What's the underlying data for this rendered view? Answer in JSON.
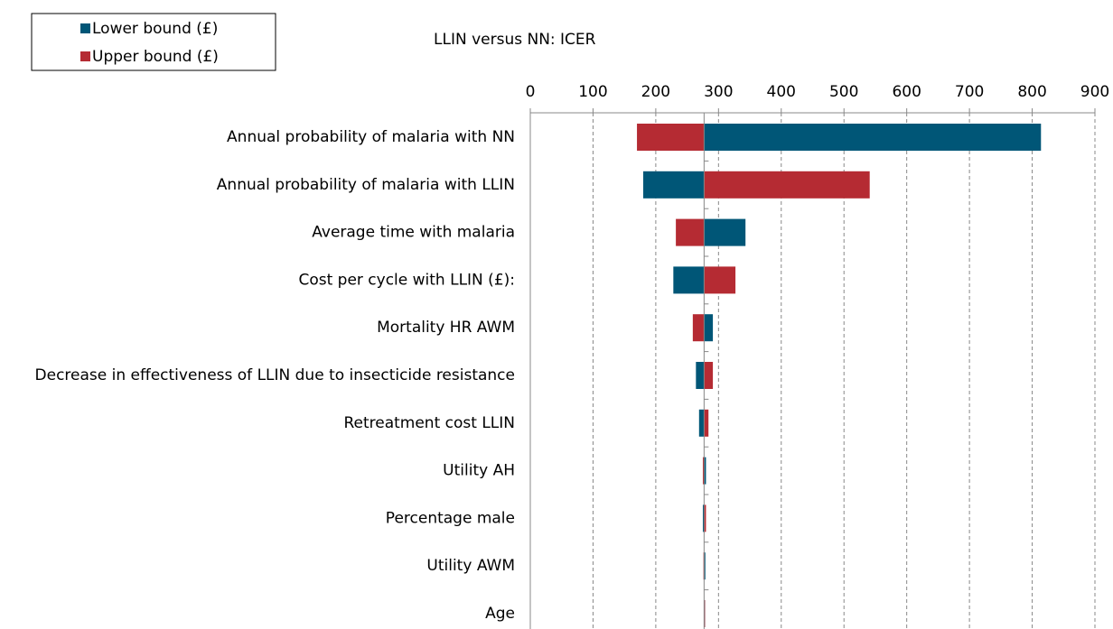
{
  "chart_data": {
    "type": "tornado",
    "title": "LLIN versus NN: ICER",
    "categories": [
      "Annual probability of malaria with NN",
      "Annual probability of malaria with LLIN",
      "Average time with malaria",
      "Cost per cycle with LLIN (£):",
      "Mortality HR AWM",
      "Decrease in effectiveness of LLIN due to insecticide resistance",
      "Retreatment cost LLIN",
      "Utility AH",
      "Percentage male",
      "Utility AWM",
      "Age"
    ],
    "base_value": 277,
    "series": [
      {
        "name": "Lower bound (£)",
        "color": "#005677",
        "values": [
          814,
          180,
          343,
          228,
          291,
          264,
          269,
          280,
          275,
          279,
          277
        ]
      },
      {
        "name": "Upper bound (£)",
        "color": "#b52b33",
        "values": [
          170,
          541,
          232,
          327,
          259,
          291,
          284,
          275,
          280,
          276,
          278
        ]
      }
    ],
    "xlim": [
      0,
      900
    ],
    "xticks": [
      0,
      100,
      200,
      300,
      400,
      500,
      600,
      700,
      800,
      900
    ],
    "grid": true,
    "legend": "top-left"
  }
}
